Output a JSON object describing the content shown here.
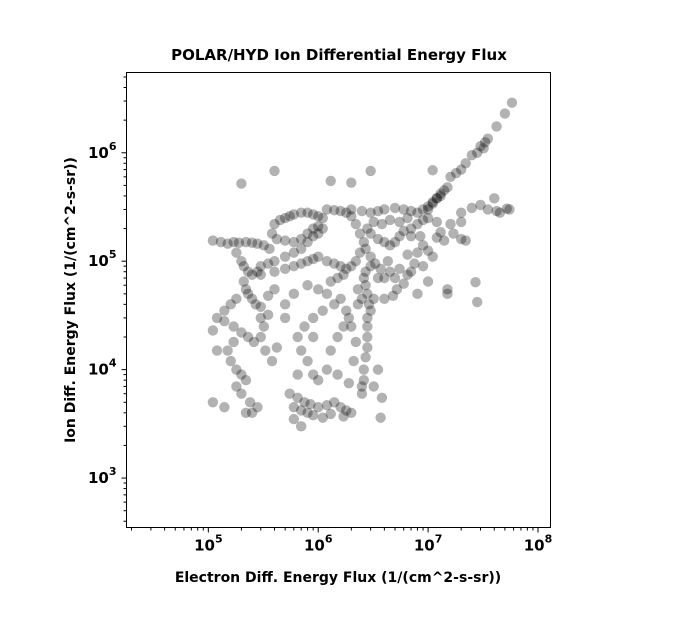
{
  "chart_data": {
    "type": "scatter",
    "title": "POLAR/HYD  Ion Differential Energy Flux",
    "xlabel": "Electron Diff. Energy Flux (1/(cm^2-s-sr))",
    "ylabel": "Ion Diff. Energy Flux (1/(cm^2-s-sr))",
    "xscale": "log",
    "yscale": "log",
    "xlim": [
      18000,
      130000000
    ],
    "ylim": [
      350,
      5500000
    ],
    "x_ticks": [
      {
        "value": 100000,
        "base": "10",
        "exp": "5"
      },
      {
        "value": 1000000,
        "base": "10",
        "exp": "6"
      },
      {
        "value": 10000000,
        "base": "10",
        "exp": "7"
      },
      {
        "value": 100000000,
        "base": "10",
        "exp": "8"
      }
    ],
    "y_ticks": [
      {
        "value": 1000,
        "base": "10",
        "exp": "3"
      },
      {
        "value": 10000,
        "base": "10",
        "exp": "4"
      },
      {
        "value": 100000,
        "base": "10",
        "exp": "5"
      },
      {
        "value": 1000000,
        "base": "10",
        "exp": "6"
      }
    ],
    "grid": false,
    "marker_color": "#000000",
    "marker_alpha": 0.3,
    "points": [
      [
        13000000,
        420000
      ],
      [
        14000000,
        450000
      ],
      [
        15000000,
        480000
      ],
      [
        20000000,
        700000
      ],
      [
        25000000,
        950000
      ],
      [
        30000000,
        1150000
      ],
      [
        35000000,
        1350000
      ],
      [
        42000000,
        1750000
      ],
      [
        50000000,
        2300000
      ],
      [
        58000000,
        2900000
      ],
      [
        28000000,
        1000000
      ],
      [
        33000000,
        1250000
      ],
      [
        32000000,
        1100000
      ],
      [
        12000000,
        380000
      ],
      [
        11000000,
        350000
      ],
      [
        10000000,
        300000
      ],
      [
        16000000,
        600000
      ],
      [
        18000000,
        650000
      ],
      [
        22000000,
        800000
      ],
      [
        3000000,
        680000
      ],
      [
        2000000,
        530000
      ],
      [
        1300000,
        550000
      ],
      [
        400000,
        680000
      ],
      [
        200000,
        520000
      ],
      [
        11000000,
        690000
      ],
      [
        500000,
        250000
      ],
      [
        550000,
        260000
      ],
      [
        600000,
        270000
      ],
      [
        700000,
        280000
      ],
      [
        800000,
        280000
      ],
      [
        900000,
        270000
      ],
      [
        1000000,
        260000
      ],
      [
        1100000,
        250000
      ],
      [
        450000,
        240000
      ],
      [
        400000,
        220000
      ],
      [
        380000,
        180000
      ],
      [
        420000,
        160000
      ],
      [
        500000,
        155000
      ],
      [
        600000,
        150000
      ],
      [
        700000,
        160000
      ],
      [
        800000,
        180000
      ],
      [
        900000,
        200000
      ],
      [
        1000000,
        210000
      ],
      [
        1100000,
        200000
      ],
      [
        1000000,
        180000
      ],
      [
        900000,
        170000
      ],
      [
        800000,
        150000
      ],
      [
        700000,
        130000
      ],
      [
        600000,
        120000
      ],
      [
        500000,
        110000
      ],
      [
        400000,
        100000
      ],
      [
        350000,
        95000
      ],
      [
        300000,
        90000
      ],
      [
        280000,
        80000
      ],
      [
        300000,
        75000
      ],
      [
        400000,
        80000
      ],
      [
        500000,
        85000
      ],
      [
        600000,
        90000
      ],
      [
        700000,
        95000
      ],
      [
        800000,
        100000
      ],
      [
        900000,
        105000
      ],
      [
        1000000,
        110000
      ],
      [
        1200000,
        100000
      ],
      [
        1400000,
        95000
      ],
      [
        1600000,
        90000
      ],
      [
        1800000,
        85000
      ],
      [
        2000000,
        90000
      ],
      [
        2200000,
        100000
      ],
      [
        2400000,
        120000
      ],
      [
        2600000,
        150000
      ],
      [
        2400000,
        180000
      ],
      [
        2200000,
        220000
      ],
      [
        2000000,
        260000
      ],
      [
        1800000,
        280000
      ],
      [
        1600000,
        290000
      ],
      [
        1400000,
        295000
      ],
      [
        1200000,
        300000
      ],
      [
        2000000,
        300000
      ],
      [
        2500000,
        290000
      ],
      [
        3000000,
        280000
      ],
      [
        3500000,
        290000
      ],
      [
        4000000,
        300000
      ],
      [
        5000000,
        310000
      ],
      [
        6000000,
        300000
      ],
      [
        7000000,
        290000
      ],
      [
        8000000,
        280000
      ],
      [
        9000000,
        300000
      ],
      [
        10000000,
        320000
      ],
      [
        11000000,
        340000
      ],
      [
        12000000,
        380000
      ],
      [
        13000000,
        400000
      ],
      [
        2800000,
        200000
      ],
      [
        3000000,
        180000
      ],
      [
        3500000,
        160000
      ],
      [
        4000000,
        150000
      ],
      [
        4500000,
        140000
      ],
      [
        5000000,
        150000
      ],
      [
        5500000,
        170000
      ],
      [
        6000000,
        190000
      ],
      [
        7000000,
        200000
      ],
      [
        8000000,
        220000
      ],
      [
        9000000,
        240000
      ],
      [
        10000000,
        250000
      ],
      [
        3200000,
        230000
      ],
      [
        3800000,
        220000
      ],
      [
        4500000,
        240000
      ],
      [
        5500000,
        230000
      ],
      [
        6500000,
        250000
      ],
      [
        2700000,
        130000
      ],
      [
        3000000,
        110000
      ],
      [
        3300000,
        95000
      ],
      [
        3700000,
        85000
      ],
      [
        3000000,
        90000
      ],
      [
        2700000,
        80000
      ],
      [
        2600000,
        70000
      ],
      [
        2700000,
        60000
      ],
      [
        2800000,
        50000
      ],
      [
        2900000,
        40000
      ],
      [
        2800000,
        30000
      ],
      [
        2800000,
        25000
      ],
      [
        2800000,
        20000
      ],
      [
        2800000,
        16000
      ],
      [
        2700000,
        13000
      ],
      [
        2600000,
        10000
      ],
      [
        2600000,
        8000
      ],
      [
        2500000,
        7000
      ],
      [
        2500000,
        6000
      ],
      [
        3000000,
        35000
      ],
      [
        3200000,
        45000
      ],
      [
        2500000,
        45000
      ],
      [
        3500000,
        70000
      ],
      [
        4000000,
        70000
      ],
      [
        4500000,
        80000
      ],
      [
        1500000,
        70000
      ],
      [
        1700000,
        75000
      ],
      [
        1300000,
        65000
      ],
      [
        110000,
        155000
      ],
      [
        130000,
        150000
      ],
      [
        150000,
        145000
      ],
      [
        170000,
        150000
      ],
      [
        190000,
        148000
      ],
      [
        220000,
        150000
      ],
      [
        250000,
        148000
      ],
      [
        280000,
        145000
      ],
      [
        320000,
        140000
      ],
      [
        360000,
        130000
      ],
      [
        180000,
        120000
      ],
      [
        200000,
        100000
      ],
      [
        210000,
        90000
      ],
      [
        230000,
        80000
      ],
      [
        250000,
        75000
      ],
      [
        210000,
        65000
      ],
      [
        220000,
        55000
      ],
      [
        230000,
        50000
      ],
      [
        250000,
        45000
      ],
      [
        270000,
        40000
      ],
      [
        300000,
        38000
      ],
      [
        180000,
        45000
      ],
      [
        160000,
        40000
      ],
      [
        140000,
        35000
      ],
      [
        120000,
        30000
      ],
      [
        140000,
        28000
      ],
      [
        170000,
        25000
      ],
      [
        200000,
        22000
      ],
      [
        230000,
        20000
      ],
      [
        260000,
        18000
      ],
      [
        170000,
        18000
      ],
      [
        150000,
        15000
      ],
      [
        160000,
        12000
      ],
      [
        180000,
        10000
      ],
      [
        200000,
        9000
      ],
      [
        220000,
        8000
      ],
      [
        180000,
        7000
      ],
      [
        200000,
        6000
      ],
      [
        240000,
        5000
      ],
      [
        280000,
        4500
      ],
      [
        250000,
        4000
      ],
      [
        110000,
        23000
      ],
      [
        120000,
        15000
      ],
      [
        110000,
        5000
      ],
      [
        140000,
        4500
      ],
      [
        220000,
        4000
      ],
      [
        300000,
        30000
      ],
      [
        350000,
        32000
      ],
      [
        320000,
        25000
      ],
      [
        300000,
        20000
      ],
      [
        330000,
        15000
      ],
      [
        380000,
        12000
      ],
      [
        420000,
        16000
      ],
      [
        550000,
        6000
      ],
      [
        650000,
        5500
      ],
      [
        750000,
        5000
      ],
      [
        850000,
        4800
      ],
      [
        1000000,
        4500
      ],
      [
        1200000,
        4700
      ],
      [
        1400000,
        5000
      ],
      [
        1600000,
        4500
      ],
      [
        1800000,
        4200
      ],
      [
        2000000,
        4000
      ],
      [
        600000,
        4500
      ],
      [
        700000,
        4200
      ],
      [
        800000,
        4000
      ],
      [
        900000,
        3800
      ],
      [
        1100000,
        3600
      ],
      [
        600000,
        3500
      ],
      [
        700000,
        3000
      ],
      [
        1300000,
        3900
      ],
      [
        1700000,
        3700
      ],
      [
        1000000,
        8000
      ],
      [
        900000,
        9000
      ],
      [
        1200000,
        10000
      ],
      [
        800000,
        12000
      ],
      [
        700000,
        15000
      ],
      [
        650000,
        20000
      ],
      [
        750000,
        25000
      ],
      [
        900000,
        30000
      ],
      [
        1300000,
        15000
      ],
      [
        1500000,
        20000
      ],
      [
        1700000,
        25000
      ],
      [
        1800000,
        35000
      ],
      [
        1600000,
        45000
      ],
      [
        1400000,
        40000
      ],
      [
        1100000,
        35000
      ],
      [
        500000,
        30000
      ],
      [
        500000,
        40000
      ],
      [
        600000,
        50000
      ],
      [
        800000,
        60000
      ],
      [
        1000000,
        55000
      ],
      [
        1200000,
        50000
      ],
      [
        400000,
        55000
      ],
      [
        350000,
        48000
      ],
      [
        900000,
        20000
      ],
      [
        650000,
        9000
      ],
      [
        1500000,
        9000
      ],
      [
        1900000,
        7500
      ],
      [
        2100000,
        12000
      ],
      [
        2200000,
        18000
      ],
      [
        2000000,
        25000
      ],
      [
        1900000,
        30000
      ],
      [
        3800000,
        5500
      ],
      [
        3700000,
        3600
      ],
      [
        3500000,
        10000
      ],
      [
        3200000,
        7000
      ],
      [
        2300000,
        40000
      ],
      [
        2300000,
        55000
      ],
      [
        5000000,
        70000
      ],
      [
        6000000,
        62000
      ],
      [
        5200000,
        55000
      ],
      [
        4800000,
        48000
      ],
      [
        4000000,
        45000
      ],
      [
        5500000,
        85000
      ],
      [
        6500000,
        75000
      ],
      [
        4300000,
        100000
      ],
      [
        6500000,
        115000
      ],
      [
        7500000,
        95000
      ],
      [
        8000000,
        120000
      ],
      [
        9000000,
        140000
      ],
      [
        10000000,
        125000
      ],
      [
        11000000,
        110000
      ],
      [
        12000000,
        165000
      ],
      [
        13000000,
        185000
      ],
      [
        14000000,
        155000
      ],
      [
        7000000,
        170000
      ],
      [
        8500000,
        170000
      ],
      [
        16000000,
        220000
      ],
      [
        17000000,
        180000
      ],
      [
        20000000,
        160000
      ],
      [
        22000000,
        155000
      ],
      [
        12000000,
        230000
      ],
      [
        8000000,
        50000
      ],
      [
        7000000,
        80000
      ],
      [
        9000000,
        90000
      ],
      [
        10000000,
        65000
      ],
      [
        15000000,
        55000
      ],
      [
        15000000,
        50000
      ],
      [
        27000000,
        64000
      ],
      [
        28000000,
        42000
      ],
      [
        20000000,
        230000
      ],
      [
        20000000,
        280000
      ],
      [
        25000000,
        310000
      ],
      [
        30000000,
        330000
      ],
      [
        35000000,
        300000
      ],
      [
        40000000,
        380000
      ],
      [
        42000000,
        290000
      ],
      [
        45000000,
        280000
      ],
      [
        52000000,
        305000
      ],
      [
        55000000,
        300000
      ]
    ]
  }
}
